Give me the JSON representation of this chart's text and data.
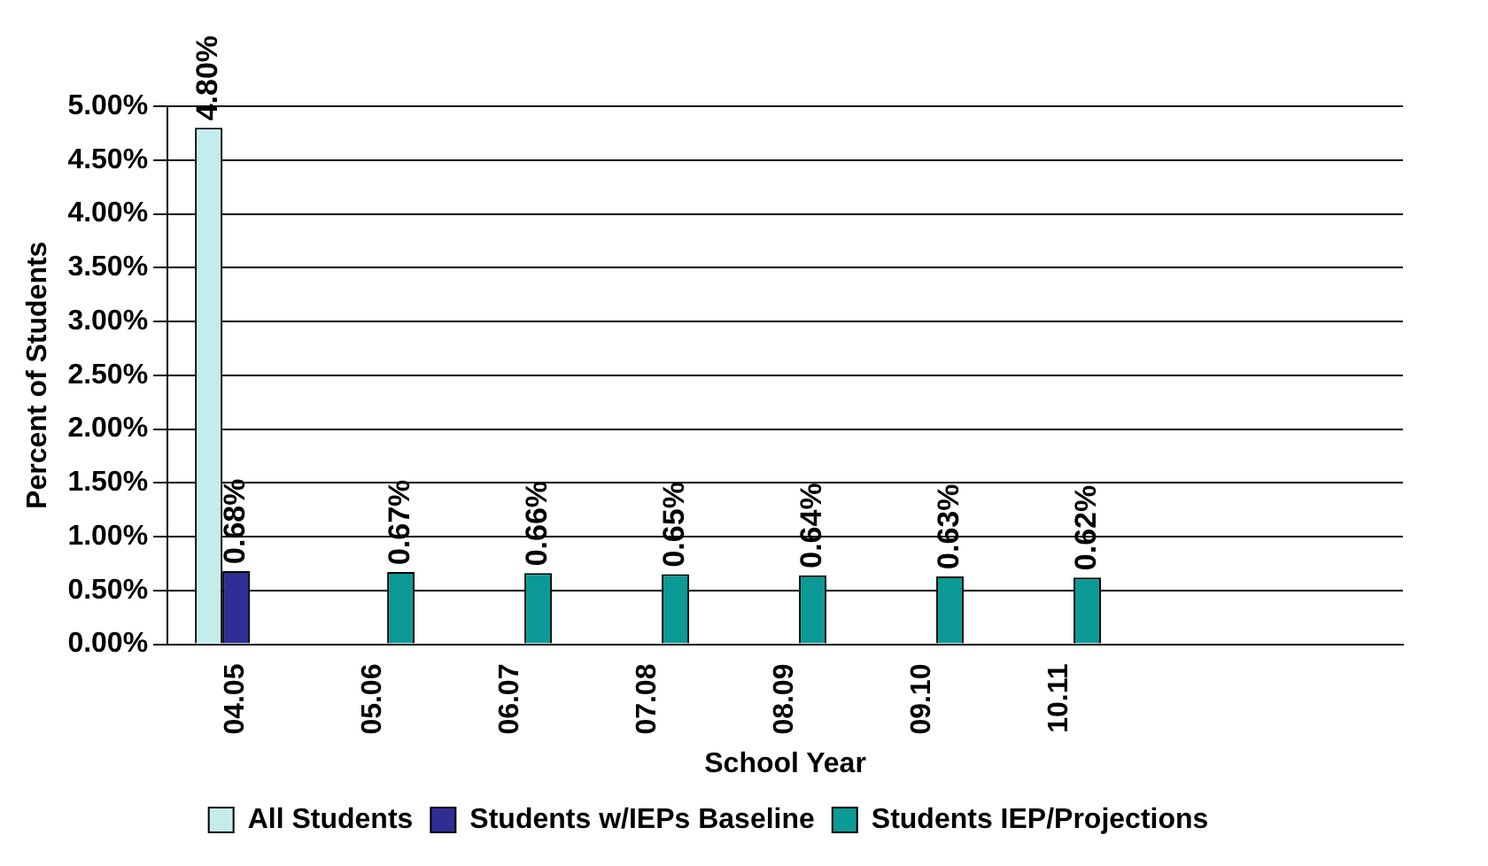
{
  "chart_data": {
    "type": "bar",
    "xlabel": "School Year",
    "ylabel": "Percent of Students",
    "categories": [
      "04.05",
      "05.06",
      "06.07",
      "07.08",
      "08.09",
      "09.10",
      "10.11",
      null,
      null
    ],
    "series": [
      {
        "name": "All Students",
        "color": "#c4ecec",
        "values": [
          4.8,
          null,
          null,
          null,
          null,
          null,
          null,
          null,
          null
        ],
        "value_labels": [
          "4.80%",
          null,
          null,
          null,
          null,
          null,
          null,
          null,
          null
        ]
      },
      {
        "name": "Students w/IEPs Baseline",
        "color": "#2e2e94",
        "values": [
          0.68,
          null,
          null,
          null,
          null,
          null,
          null,
          null,
          null
        ],
        "value_labels": [
          "0.68%",
          null,
          null,
          null,
          null,
          null,
          null,
          null,
          null
        ]
      },
      {
        "name": "Students IEP/Projections",
        "color": "#0b9a96",
        "values": [
          null,
          0.67,
          0.66,
          0.65,
          0.64,
          0.63,
          0.62,
          null,
          null
        ],
        "value_labels": [
          null,
          "0.67%",
          "0.66%",
          "0.65%",
          "0.64%",
          "0.63%",
          "0.62%",
          null,
          null
        ]
      }
    ],
    "ylim": [
      0,
      5
    ],
    "yticks": [
      {
        "value": 0,
        "label": "0.00%"
      },
      {
        "value": 0.5,
        "label": "0.50%"
      },
      {
        "value": 1,
        "label": "1.00%"
      },
      {
        "value": 1.5,
        "label": "1.50%"
      },
      {
        "value": 2,
        "label": "2.00%"
      },
      {
        "value": 2.5,
        "label": "2.50%"
      },
      {
        "value": 3,
        "label": "3.00%"
      },
      {
        "value": 3.5,
        "label": "3.50%"
      },
      {
        "value": 4,
        "label": "4.00%"
      },
      {
        "value": 4.5,
        "label": "4.50%"
      },
      {
        "value": 5,
        "label": "5.00%"
      }
    ],
    "grid": "y",
    "legend": "bottom"
  }
}
